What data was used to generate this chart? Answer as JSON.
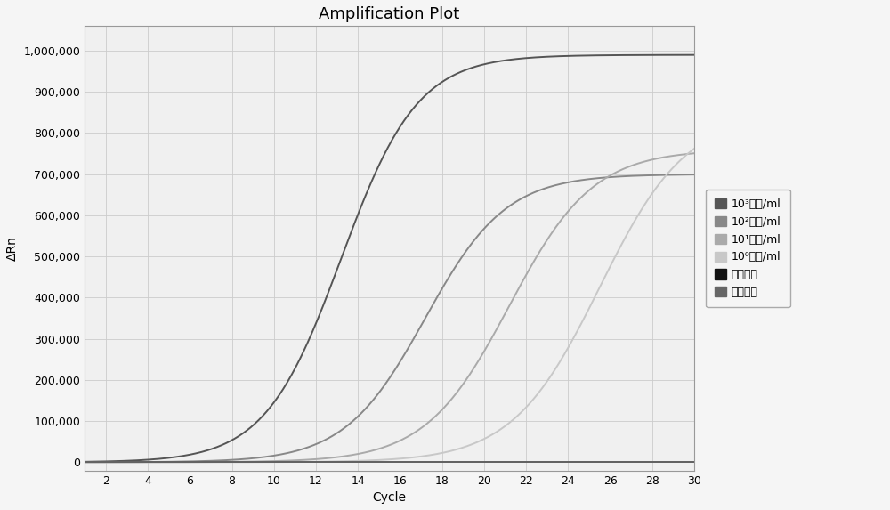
{
  "title": "Amplification Plot",
  "xlabel": "Cycle",
  "ylabel": "ΔRn",
  "xlim": [
    1,
    30
  ],
  "ylim": [
    -20000,
    1060000
  ],
  "xticks": [
    2,
    4,
    6,
    8,
    10,
    12,
    14,
    16,
    18,
    20,
    22,
    24,
    26,
    28,
    30
  ],
  "yticks": [
    0,
    100000,
    200000,
    300000,
    400000,
    500000,
    600000,
    700000,
    800000,
    900000,
    1000000
  ],
  "ytick_labels": [
    "0",
    "100,000",
    "200,000",
    "300,000",
    "400,000",
    "500,000",
    "600,000",
    "700,000",
    "800,000",
    "900,000",
    "1,000,000"
  ],
  "series": [
    {
      "label": "10³个菌/ml",
      "color": "#555555",
      "midpoint": 13.2,
      "plateau": 990000,
      "steepness": 0.55
    },
    {
      "label": "10²个菌/ml",
      "color": "#888888",
      "midpoint": 17.2,
      "plateau": 700000,
      "steepness": 0.52
    },
    {
      "label": "10¹个菌/ml",
      "color": "#aaaaaa",
      "midpoint": 21.2,
      "plateau": 760000,
      "steepness": 0.5
    },
    {
      "label": "10⁰个菌/ml",
      "color": "#c8c8c8",
      "midpoint": 25.5,
      "plateau": 850000,
      "steepness": 0.48
    },
    {
      "label": "阴性对照",
      "color": "#111111",
      "midpoint": 100,
      "plateau": 2000,
      "steepness": 0.5
    },
    {
      "label": "阳性对照",
      "color": "#666666",
      "midpoint": 100,
      "plateau": 2000,
      "steepness": 0.5
    }
  ],
  "bg_color": "#f5f5f5",
  "plot_bg_color": "#f0f0f0",
  "grid_color": "#cccccc",
  "legend_border_color": "#aaaaaa",
  "title_fontsize": 13,
  "label_fontsize": 10,
  "tick_fontsize": 9,
  "legend_fontsize": 9,
  "line_width": 1.4
}
